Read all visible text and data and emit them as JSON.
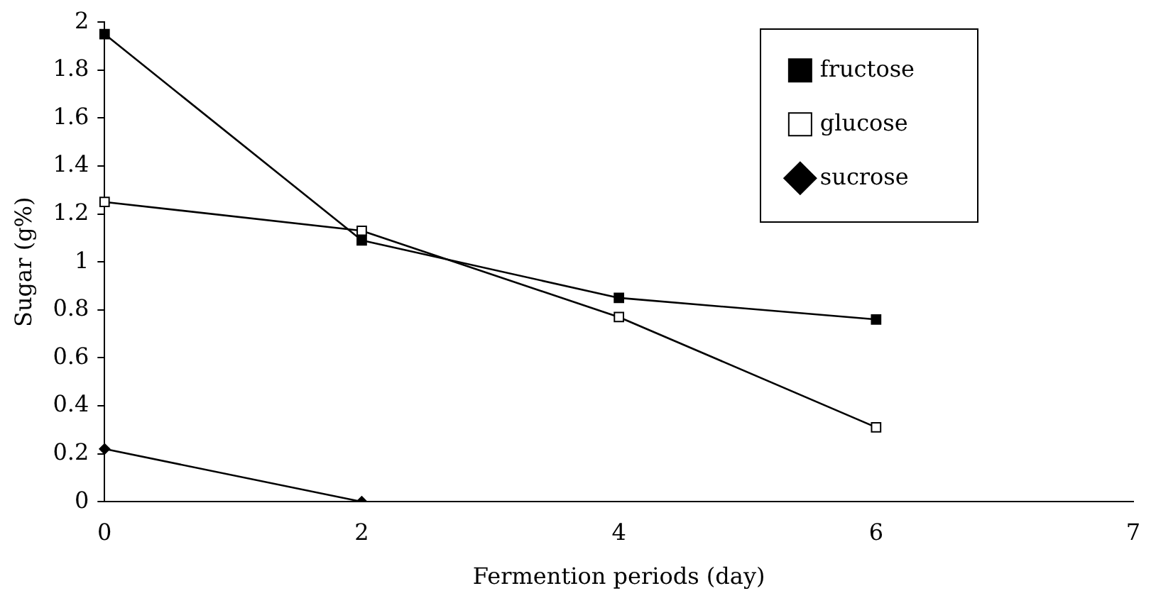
{
  "chart_data": {
    "type": "line",
    "xlabel": "Fermention periods (day)",
    "ylabel": "Sugar (g%)",
    "categories": [
      "0",
      "2",
      "4",
      "6",
      "7"
    ],
    "series": [
      {
        "name": "fructose",
        "color": "#000000",
        "marker": "square",
        "values": [
          1.95,
          1.09,
          0.85,
          0.76,
          null
        ]
      },
      {
        "name": "glucose",
        "color": "#000000",
        "marker": "square-open",
        "values": [
          1.25,
          1.13,
          0.77,
          0.31,
          null
        ]
      },
      {
        "name": "sucrose",
        "color": "#000000",
        "marker": "diamond",
        "values": [
          0.22,
          0,
          null,
          null,
          null
        ]
      }
    ],
    "ylim": [
      0,
      2
    ],
    "yticks": [
      0,
      0.2,
      0.4,
      0.6,
      0.8,
      1,
      1.2,
      1.4,
      1.6,
      1.8,
      2
    ],
    "grid": false,
    "legend": "top right"
  }
}
